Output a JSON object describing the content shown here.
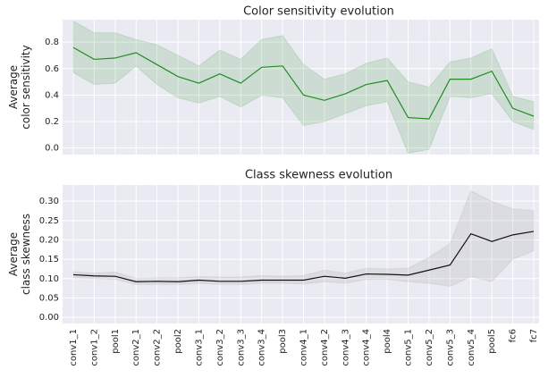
{
  "chart_data": [
    {
      "type": "line",
      "title": "Color sensitivity evolution",
      "ylabel": [
        "Average",
        "color sensitivity"
      ],
      "categories": [
        null,
        null,
        null,
        null,
        null,
        null,
        null,
        null,
        null,
        null,
        null,
        null,
        null,
        null,
        null,
        null,
        null,
        null,
        null,
        null,
        null,
        null,
        null
      ],
      "series": [
        {
          "color": "#238b23",
          "band_color": "#238b23",
          "values": [
            0.76,
            0.67,
            0.68,
            0.72,
            0.63,
            0.54,
            0.49,
            0.56,
            0.49,
            0.61,
            0.62,
            0.4,
            0.36,
            0.41,
            0.48,
            0.51,
            0.23,
            0.22,
            0.52,
            0.52,
            0.58,
            0.3,
            0.24
          ],
          "upper": [
            0.96,
            0.87,
            0.87,
            0.82,
            0.78,
            0.7,
            0.62,
            0.74,
            0.67,
            0.82,
            0.85,
            0.63,
            0.52,
            0.56,
            0.64,
            0.68,
            0.5,
            0.46,
            0.65,
            0.68,
            0.75,
            0.39,
            0.35
          ],
          "lower": [
            0.57,
            0.48,
            0.49,
            0.62,
            0.48,
            0.38,
            0.34,
            0.39,
            0.31,
            0.4,
            0.38,
            0.17,
            0.2,
            0.26,
            0.32,
            0.35,
            -0.04,
            -0.01,
            0.39,
            0.38,
            0.41,
            0.2,
            0.14
          ]
        }
      ],
      "ylim": [
        -0.05,
        0.97
      ],
      "yticks": [
        {
          "value": 0,
          "label": "0.0"
        },
        {
          "value": 0.2,
          "label": "0.2"
        },
        {
          "value": 0.4,
          "label": "0.4"
        },
        {
          "value": 0.6,
          "label": "0.6"
        },
        {
          "value": 0.8,
          "label": "0.8"
        }
      ],
      "grid": true
    },
    {
      "type": "line",
      "title": "Class skewness evolution",
      "ylabel": [
        "Average",
        "class skewness"
      ],
      "categories": [
        "conv1_1",
        "conv1_2",
        "pool1",
        "conv2_1",
        "conv2_2",
        "pool2",
        "conv3_1",
        "conv3_2",
        "conv3_3",
        "conv3_4",
        "pool3",
        "conv4_1",
        "conv4_2",
        "conv4_3",
        "conv4_4",
        "pool4",
        "conv5_1",
        "conv5_2",
        "conv5_3",
        "conv5_4",
        "pool5",
        "fc6",
        "fc7"
      ],
      "series": [
        {
          "color": "#111111",
          "band_color": "#888888",
          "values": [
            0.11,
            0.107,
            0.106,
            0.092,
            0.093,
            0.092,
            0.096,
            0.093,
            0.093,
            0.096,
            0.096,
            0.096,
            0.106,
            0.101,
            0.112,
            0.111,
            0.109,
            0.122,
            0.135,
            0.216,
            0.196,
            0.213,
            0.222
          ],
          "upper": [
            0.118,
            0.114,
            0.117,
            0.1,
            0.102,
            0.102,
            0.105,
            0.104,
            0.104,
            0.108,
            0.106,
            0.108,
            0.122,
            0.114,
            0.127,
            0.125,
            0.127,
            0.155,
            0.19,
            0.327,
            0.3,
            0.28,
            0.276
          ],
          "lower": [
            0.102,
            0.1,
            0.098,
            0.085,
            0.085,
            0.085,
            0.088,
            0.085,
            0.085,
            0.088,
            0.088,
            0.086,
            0.092,
            0.088,
            0.098,
            0.098,
            0.092,
            0.088,
            0.08,
            0.105,
            0.092,
            0.15,
            0.172
          ]
        }
      ],
      "ylim": [
        -0.016,
        0.342
      ],
      "yticks": [
        {
          "value": 0,
          "label": "0.00"
        },
        {
          "value": 0.05,
          "label": "0.05"
        },
        {
          "value": 0.1,
          "label": "0.10"
        },
        {
          "value": 0.15,
          "label": "0.15"
        },
        {
          "value": 0.2,
          "label": "0.20"
        },
        {
          "value": 0.25,
          "label": "0.25"
        },
        {
          "value": 0.3,
          "label": "0.30"
        }
      ],
      "grid": true
    }
  ]
}
